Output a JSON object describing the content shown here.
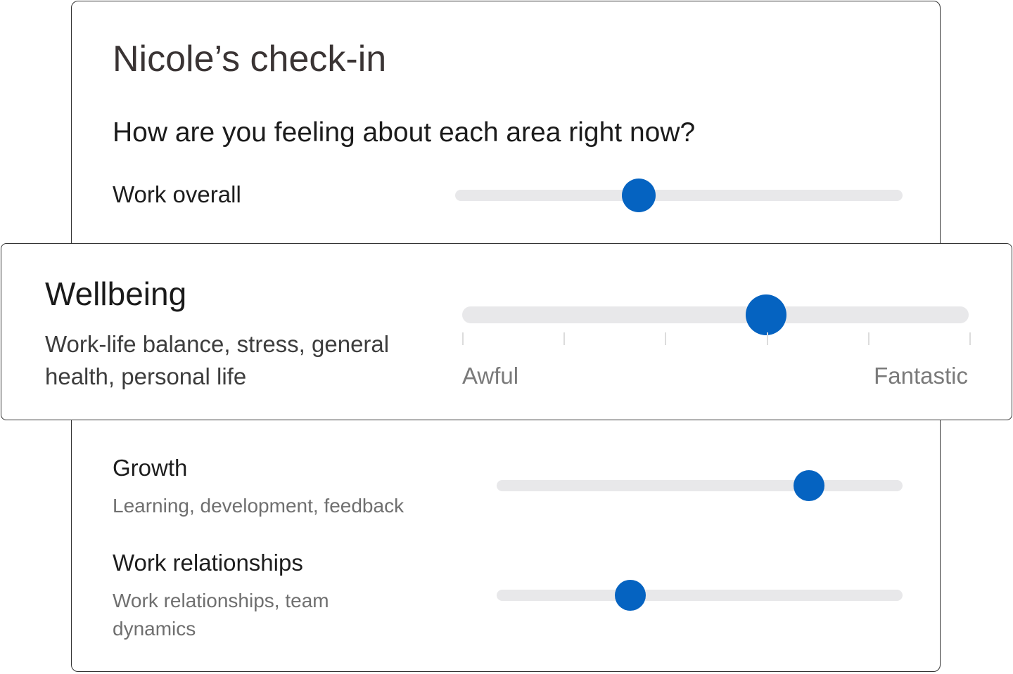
{
  "header": {
    "title": "Nicole’s check-in",
    "question": "How are you feeling about each area right now?"
  },
  "areas": [
    {
      "label": "Work overall",
      "description": "",
      "value": 0.41
    },
    {
      "label": "Growth",
      "description": "Learning, development, feedback",
      "value": 0.77
    },
    {
      "label": "Work relationships",
      "description": "Work relationships, team dynamics",
      "value": 0.33
    }
  ],
  "focused_area": {
    "label": "Wellbeing",
    "description": "Work-life balance, stress, general health, personal life",
    "value": 0.6,
    "scale_steps": 6,
    "min_label": "Awful",
    "max_label": "Fantastic"
  },
  "colors": {
    "accent": "#0563c1",
    "track": "#e8e8ea",
    "border": "#333333"
  }
}
